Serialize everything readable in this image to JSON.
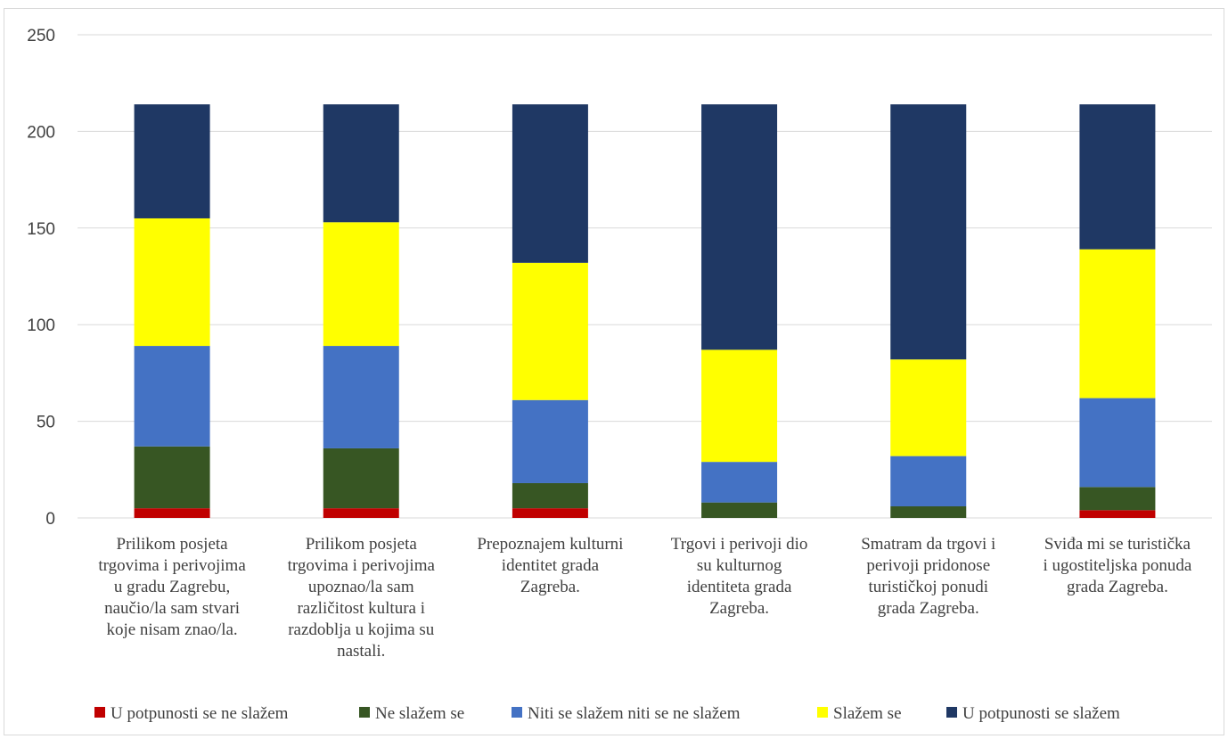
{
  "chart_data": {
    "type": "bar",
    "stacked": true,
    "ylim": [
      0,
      250
    ],
    "y_ticks": [
      "0",
      "50",
      "100",
      "150",
      "200",
      "250"
    ],
    "grid": true,
    "legend_position": "bottom",
    "categories": [
      [
        "Prilikom posjeta",
        "trgovima i perivojima",
        "u gradu Zagrebu,",
        "naučio/la sam stvari",
        "koje nisam znao/la."
      ],
      [
        "Prilikom posjeta",
        "trgovima i perivojima",
        "upoznao/la sam",
        "različitost kultura i",
        "razdoblja u kojima su",
        "nastali."
      ],
      [
        "Prepoznajem kulturni",
        "identitet grada",
        "Zagreba."
      ],
      [
        "Trgovi i perivoji dio",
        "su kulturnog",
        "identiteta grada",
        "Zagreba."
      ],
      [
        "Smatram da trgovi i",
        "perivoji pridonose",
        "turističkoj ponudi",
        "grada Zagreba."
      ],
      [
        "Sviđa mi se turistička",
        "i ugostiteljska ponuda",
        "grada Zagreba."
      ]
    ],
    "series": [
      {
        "name": "U potpunosti se ne slažem",
        "color": "#c00000",
        "values": [
          5,
          5,
          5,
          0,
          0,
          4
        ]
      },
      {
        "name": "Ne slažem se",
        "color": "#375623",
        "values": [
          32,
          31,
          13,
          8,
          6,
          12
        ]
      },
      {
        "name": "Niti se slažem niti se ne slažem",
        "color": "#4472c4",
        "values": [
          52,
          53,
          43,
          21,
          26,
          46
        ]
      },
      {
        "name": "Slažem se",
        "color": "#ffff00",
        "values": [
          66,
          64,
          71,
          58,
          50,
          77
        ]
      },
      {
        "name": "U potpunosti se slažem",
        "color": "#1f3864",
        "values": [
          59,
          61,
          82,
          127,
          132,
          75
        ]
      }
    ]
  }
}
